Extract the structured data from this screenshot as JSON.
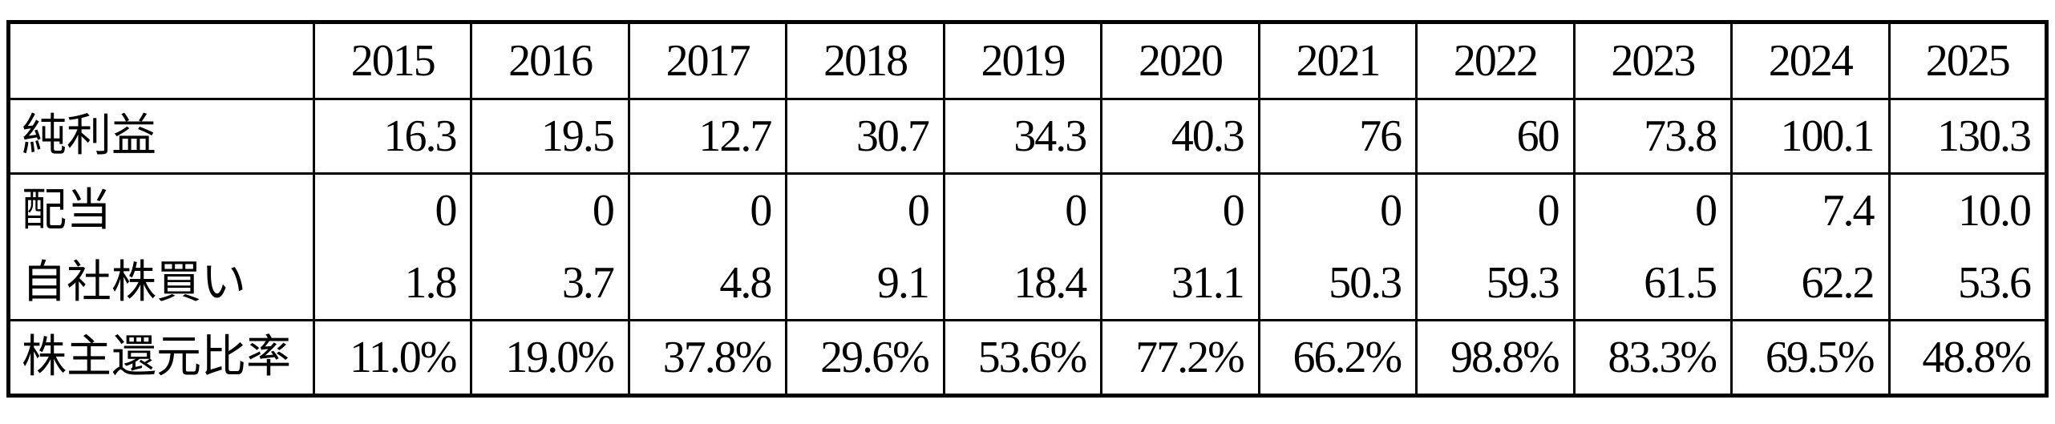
{
  "table": {
    "years": [
      "2015",
      "2016",
      "2017",
      "2018",
      "2019",
      "2020",
      "2021",
      "2022",
      "2023",
      "2024",
      "2025"
    ],
    "rows": [
      {
        "label": "純利益",
        "values": [
          "16.3",
          "19.5",
          "12.7",
          "30.7",
          "34.3",
          "40.3",
          "76",
          "60",
          "73.8",
          "100.1",
          "130.3"
        ]
      },
      {
        "label": "配当",
        "values": [
          "0",
          "0",
          "0",
          "0",
          "0",
          "0",
          "0",
          "0",
          "0",
          "7.4",
          "10.0"
        ]
      },
      {
        "label": "自社株買い",
        "values": [
          "1.8",
          "3.7",
          "4.8",
          "9.1",
          "18.4",
          "31.1",
          "50.3",
          "59.3",
          "61.5",
          "62.2",
          "53.6"
        ]
      },
      {
        "label": "株主還元比率",
        "values": [
          "11.0%",
          "19.0%",
          "37.8%",
          "29.6%",
          "53.6%",
          "77.2%",
          "66.2%",
          "98.8%",
          "83.3%",
          "69.5%",
          "48.8%"
        ]
      }
    ]
  }
}
